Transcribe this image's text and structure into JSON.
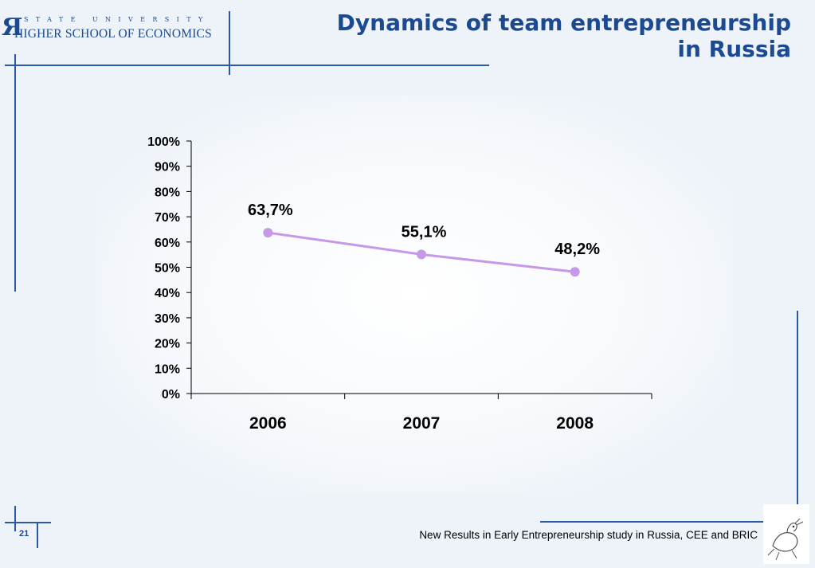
{
  "header": {
    "logo_top": "STATE UNIVERSITY",
    "logo_bottom": "HIGHER SCHOOL OF ECONOMICS",
    "title_line1": "Dynamics of team entrepreneurship",
    "title_line2": "in Russia"
  },
  "footer": {
    "page_number": "21",
    "text": "New Results in Early Entrepreneurship study in Russia, CEE and BRIC"
  },
  "colors": {
    "accent": "#1b4a93",
    "line": "#c598e8",
    "marker": "#c598e8",
    "background": "#eef3f9"
  },
  "chart_data": {
    "type": "line",
    "categories": [
      "2006",
      "2007",
      "2008"
    ],
    "values": [
      63.7,
      55.1,
      48.2
    ],
    "data_labels": [
      "63,7%",
      "55,1%",
      "48,2%"
    ],
    "y_ticks": [
      "0%",
      "10%",
      "20%",
      "30%",
      "40%",
      "50%",
      "60%",
      "70%",
      "80%",
      "90%",
      "100%"
    ],
    "ylim": [
      0,
      100
    ],
    "title": "",
    "xlabel": "",
    "ylabel": "",
    "grid": false,
    "legend": "none"
  }
}
